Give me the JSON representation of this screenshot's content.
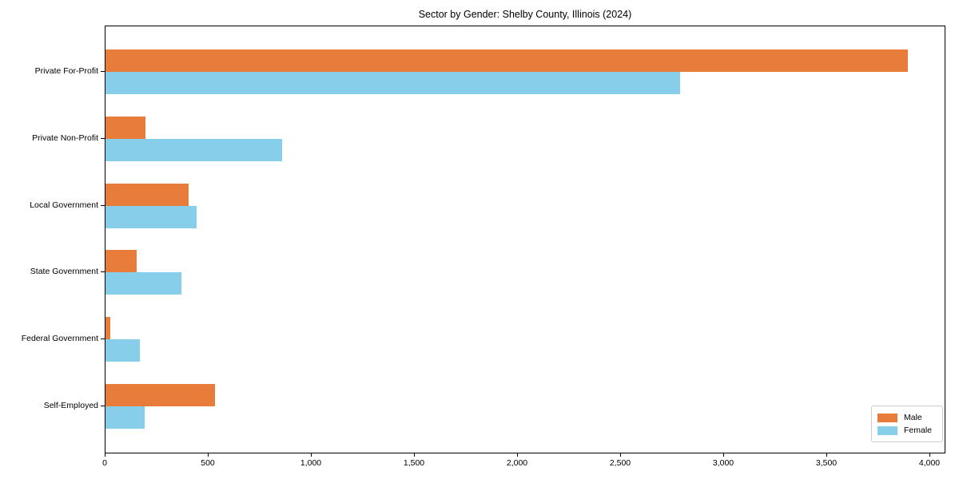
{
  "title": "Sector by Gender: Shelby County, Illinois (2024)",
  "legend": {
    "position": "lower right",
    "items": [
      {
        "label": "Male",
        "color": "#E87D3B"
      },
      {
        "label": "Female",
        "color": "#87CEEB"
      }
    ]
  },
  "chart_data": {
    "type": "bar",
    "orientation": "horizontal",
    "title": "Sector by Gender: Shelby County, Illinois (2024)",
    "categories": [
      "Private For-Profit",
      "Private Non-Profit",
      "Local Government",
      "State Government",
      "Federal Government",
      "Self-Employed"
    ],
    "series": [
      {
        "name": "Male",
        "color": "#E87D3B",
        "values": [
          3890,
          195,
          405,
          150,
          25,
          530
        ]
      },
      {
        "name": "Female",
        "color": "#87CEEB",
        "values": [
          2785,
          855,
          440,
          370,
          165,
          190
        ]
      }
    ],
    "xlabel": "",
    "ylabel": "",
    "xlim": [
      0,
      4000
    ],
    "xticks": [
      0,
      500,
      1000,
      1500,
      2000,
      2500,
      3000,
      3500,
      4000
    ],
    "xtick_labels": [
      "0",
      "500",
      "1,000",
      "1,500",
      "2,000",
      "2,500",
      "3,000",
      "3,500",
      "4,000"
    ],
    "grid": false,
    "legend_position": "lower right",
    "frame": true
  }
}
